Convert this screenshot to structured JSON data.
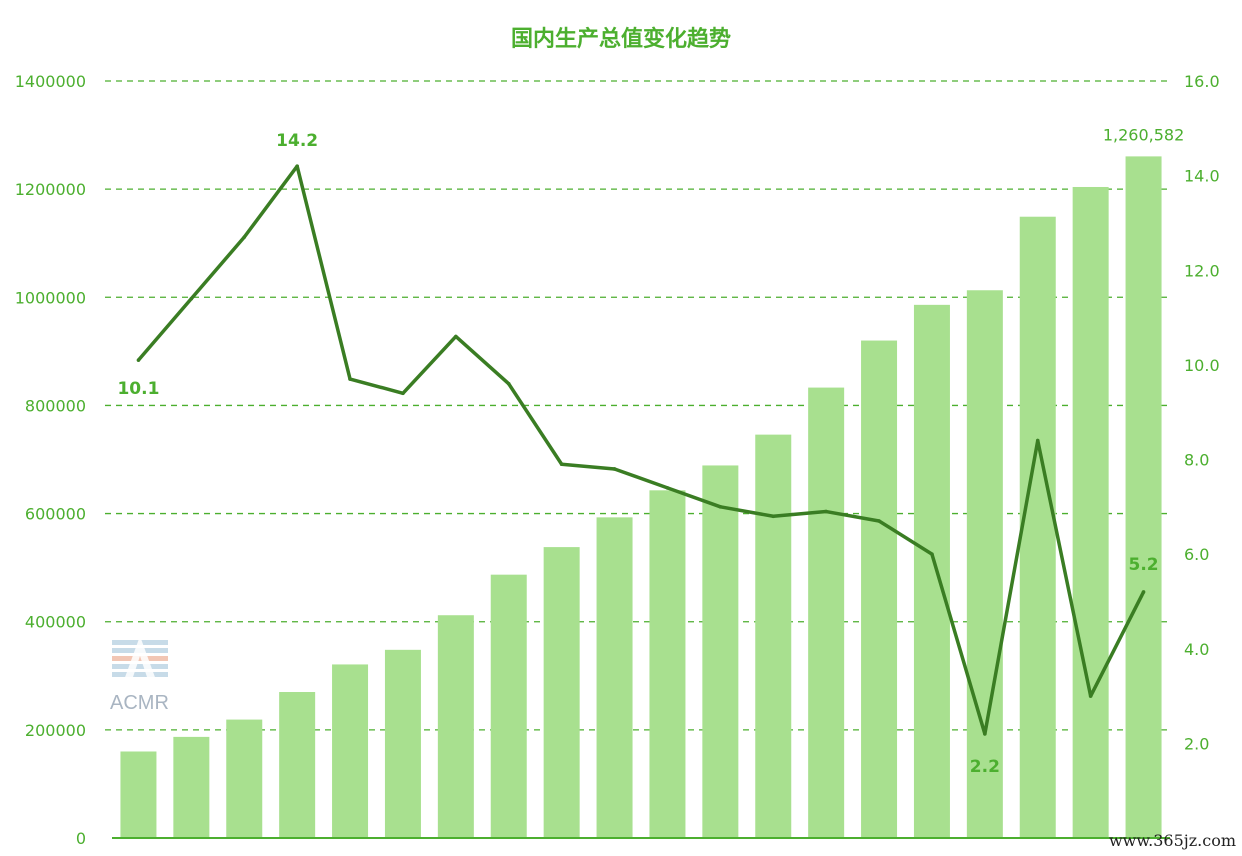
{
  "chart_data": {
    "type": "bar",
    "title": "国内生产总值变化趋势",
    "left_axis": {
      "ylim": [
        0,
        1400000
      ],
      "ticks": [
        "0",
        "200000",
        "400000",
        "600000",
        "800000",
        "1000000",
        "1200000",
        "1400000"
      ]
    },
    "right_axis": {
      "ylim": [
        0,
        16
      ],
      "ticks": [
        "2.0",
        "4.0",
        "6.0",
        "8.0",
        "10.0",
        "12.0",
        "14.0",
        "16.0"
      ]
    },
    "grid": true,
    "series": [
      {
        "type": "bar",
        "axis": "left",
        "values": [
          160000,
          187000,
          219000,
          270000,
          321000,
          348000,
          412000,
          487000,
          538000,
          593000,
          643000,
          689000,
          746000,
          833000,
          920000,
          986000,
          1013000,
          1149000,
          1204000,
          1260582
        ]
      },
      {
        "type": "line",
        "axis": "right",
        "values": [
          10.1,
          11.4,
          12.7,
          14.2,
          9.7,
          9.4,
          10.6,
          9.6,
          7.9,
          7.8,
          7.4,
          7.0,
          6.8,
          6.9,
          6.7,
          6.0,
          2.2,
          8.4,
          3.0,
          5.2
        ]
      }
    ],
    "data_labels": [
      {
        "series": 1,
        "index": 0,
        "text": "10.1"
      },
      {
        "series": 1,
        "index": 3,
        "text": "14.2"
      },
      {
        "series": 1,
        "index": 16,
        "text": "2.2"
      },
      {
        "series": 1,
        "index": 19,
        "text": "5.2"
      },
      {
        "series": 0,
        "index": 19,
        "text": "1,260,582"
      }
    ],
    "colors": {
      "bar": "#a8e08f",
      "line": "#3a7d23",
      "text": "#4caf2f"
    }
  },
  "watermark": {
    "text": "ACMR"
  },
  "site_mark": {
    "text": "www.365jz.com"
  }
}
